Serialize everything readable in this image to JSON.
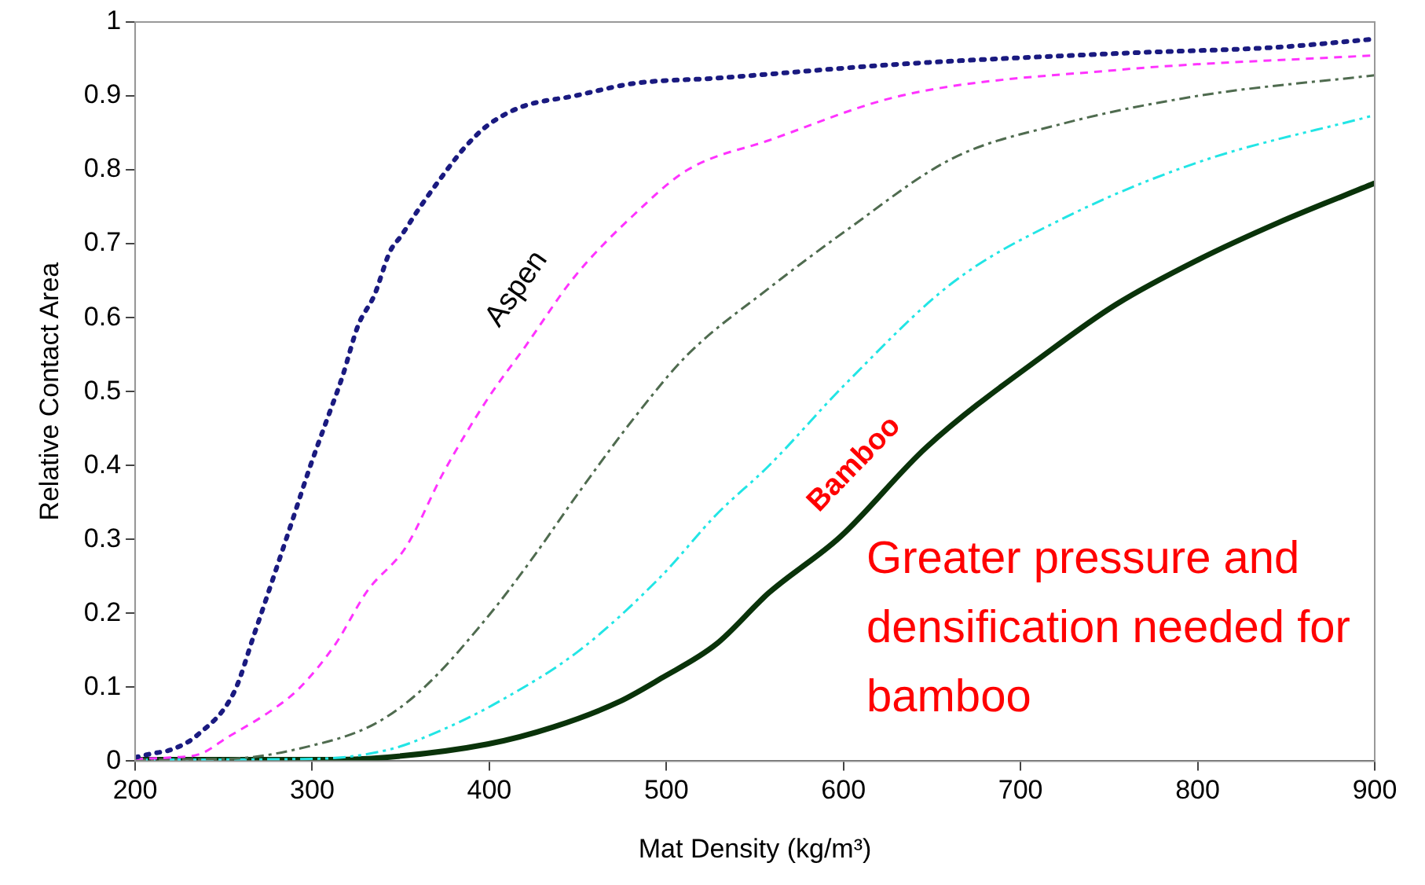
{
  "chart_data": {
    "type": "line",
    "xlabel": "Mat Density (kg/m³)",
    "ylabel": "Relative Contact Area",
    "xlim": [
      200,
      900
    ],
    "xticks": [
      200,
      300,
      400,
      500,
      600,
      700,
      800,
      900
    ],
    "ylim": [
      0,
      1
    ],
    "yticks": [
      0,
      0.1,
      0.2,
      0.3,
      0.4,
      0.5,
      0.6,
      0.7,
      0.8,
      0.9,
      1
    ],
    "grid": false,
    "legend": false,
    "marker": "none",
    "annotations": [
      "Greater pressure and densification needed for bamboo"
    ],
    "series": [
      {
        "color": "#1a1a80",
        "line_style": "dotted",
        "x": [
          200,
          209,
          221,
          235,
          256,
          267,
          288,
          299,
          308,
          317,
          326,
          335,
          344,
          350,
          361,
          373,
          386,
          399,
          418,
          448,
          482,
          528,
          632,
          760,
          846,
          900
        ],
        "values": [
          0.005,
          0.01,
          0.016,
          0.035,
          0.094,
          0.17,
          0.32,
          0.4,
          0.46,
          0.52,
          0.59,
          0.63,
          0.69,
          0.71,
          0.75,
          0.79,
          0.83,
          0.86,
          0.885,
          0.9,
          0.917,
          0.924,
          0.943,
          0.958,
          0.966,
          0.977
        ]
      },
      {
        "name": "Aspen",
        "color": "#ff33ff",
        "line_style": "dashed",
        "x": [
          200,
          221,
          237,
          252,
          276,
          292,
          313,
          331,
          353,
          374,
          399,
          420,
          448,
          482,
          512,
          558,
          632,
          754,
          900
        ],
        "values": [
          0.003,
          0.005,
          0.01,
          0.032,
          0.067,
          0.097,
          0.158,
          0.23,
          0.29,
          0.39,
          0.49,
          0.56,
          0.655,
          0.74,
          0.8,
          0.84,
          0.9,
          0.935,
          0.955
        ]
      },
      {
        "color": "#4f6b4f",
        "line_style": "dashdot",
        "x": [
          200,
          252,
          298,
          335,
          362,
          399,
          423,
          451,
          482,
          512,
          558,
          601,
          662,
          723,
          800,
          900
        ],
        "values": [
          0.002,
          0.003,
          0.02,
          0.05,
          0.097,
          0.195,
          0.27,
          0.365,
          0.465,
          0.55,
          0.64,
          0.717,
          0.816,
          0.862,
          0.9,
          0.928
        ]
      },
      {
        "color": "#22e5e5",
        "line_style": "dashdotdot",
        "x": [
          200,
          300,
          344,
          374,
          405,
          451,
          497,
          528,
          558,
          601,
          662,
          723,
          800,
          900
        ],
        "values": [
          0.002,
          0.003,
          0.016,
          0.043,
          0.08,
          0.15,
          0.25,
          0.333,
          0.4,
          0.51,
          0.648,
          0.733,
          0.81,
          0.874
        ]
      },
      {
        "name": "Bamboo",
        "color": "#0a330a",
        "line_style": "solid",
        "x": [
          200,
          300,
          335,
          399,
          436,
          473,
          497,
          528,
          558,
          598,
          647,
          717,
          754,
          800,
          846,
          900
        ],
        "values": [
          0.002,
          0.002,
          0.004,
          0.023,
          0.046,
          0.08,
          0.112,
          0.158,
          0.228,
          0.303,
          0.425,
          0.556,
          0.618,
          0.678,
          0.729,
          0.782
        ]
      }
    ]
  }
}
